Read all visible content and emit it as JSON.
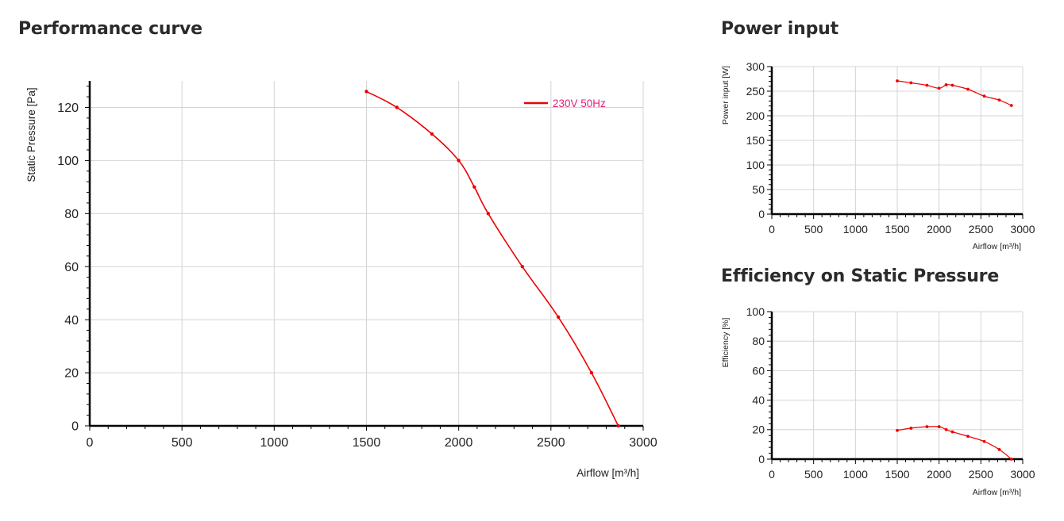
{
  "titles": {
    "performance": "Performance curve",
    "power": "Power input",
    "efficiency": "Efficiency on Static Pressure"
  },
  "colors": {
    "series": "#ee0000",
    "legend_text": "#e0207a",
    "grid": "#d4d4d4",
    "axis": "#000000"
  },
  "chart_data": [
    {
      "id": "performance",
      "type": "line",
      "xlabel": "Airflow [m³/h]",
      "ylabel": "Static Pressure [Pa]",
      "xlim": [
        0,
        3000
      ],
      "ylim": [
        0,
        130
      ],
      "xticks": [
        0,
        500,
        1000,
        1500,
        2000,
        2500,
        3000
      ],
      "yticks": [
        0,
        20,
        40,
        60,
        80,
        100,
        120
      ],
      "grid": true,
      "legend_position": "top-right",
      "series": [
        {
          "name": "230V 50Hz",
          "x": [
            1500,
            1665,
            1855,
            2000,
            2085,
            2160,
            2345,
            2540,
            2720,
            2865
          ],
          "y": [
            126,
            120,
            110,
            100,
            90,
            80,
            60,
            41,
            20,
            0
          ]
        }
      ]
    },
    {
      "id": "power",
      "type": "line",
      "xlabel": "Airflow [m³/h]",
      "ylabel": "Power input [W]",
      "xlim": [
        0,
        3000
      ],
      "ylim": [
        0,
        300
      ],
      "xticks": [
        0,
        500,
        1000,
        1500,
        2000,
        2500,
        3000
      ],
      "yticks": [
        0,
        50,
        100,
        150,
        200,
        250,
        300
      ],
      "grid": true,
      "series": [
        {
          "x": [
            1500,
            1665,
            1855,
            2000,
            2085,
            2160,
            2345,
            2540,
            2720,
            2865
          ],
          "y": [
            271,
            267,
            262,
            256,
            263,
            262,
            254,
            240,
            232,
            221
          ]
        }
      ]
    },
    {
      "id": "efficiency",
      "type": "line",
      "xlabel": "Airflow [m³/h]",
      "ylabel": "Efficiency [%]",
      "xlim": [
        0,
        3000
      ],
      "ylim": [
        0,
        100
      ],
      "xticks": [
        0,
        500,
        1000,
        1500,
        2000,
        2500,
        3000
      ],
      "yticks": [
        0,
        20,
        40,
        60,
        80,
        100
      ],
      "grid": true,
      "series": [
        {
          "x": [
            1500,
            1665,
            1855,
            2000,
            2085,
            2160,
            2345,
            2540,
            2720,
            2865
          ],
          "y": [
            19.5,
            21,
            22,
            22,
            20,
            18.5,
            15.5,
            12,
            6.5,
            0
          ]
        }
      ]
    }
  ]
}
